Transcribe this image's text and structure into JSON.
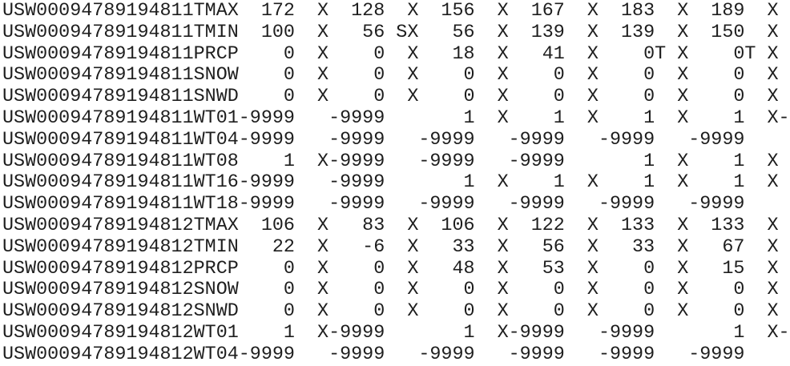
{
  "file": {
    "lines": [
      "USW00094789194811TMAX  172  X  128  X  156  X  167  X  183  X  189  X",
      "USW00094789194811TMIN  100  X   56 SX   56  X  139  X  139  X  150  X",
      "USW00094789194811PRCP    0  X    0  X   18  X   41  X    0T X    0T X",
      "USW00094789194811SNOW    0  X    0  X    0  X    0  X    0  X    0  X",
      "USW00094789194811SNWD    0  X    0  X    0  X    0  X    0  X    0  X",
      "USW00094789194811WT01-9999   -9999       1  X    1  X    1  X    1  X-",
      "USW00094789194811WT04-9999   -9999   -9999   -9999   -9999   -9999",
      "USW00094789194811WT08    1  X-9999   -9999   -9999       1  X    1  X",
      "USW00094789194811WT16-9999   -9999       1  X    1  X    1  X    1  X",
      "USW00094789194811WT18-9999   -9999   -9999   -9999   -9999   -9999",
      "USW00094789194812TMAX  106  X   83  X  106  X  122  X  133  X  133  X",
      "USW00094789194812TMIN   22  X   -6  X   33  X   56  X   33  X   67  X",
      "USW00094789194812PRCP    0  X    0  X   48  X   53  X    0  X   15  X",
      "USW00094789194812SNOW    0  X    0  X    0  X    0  X    0  X    0  X",
      "USW00094789194812SNWD    0  X    0  X    0  X    0  X    0  X    0  X",
      "USW00094789194812WT01    1  X-9999       1  X-9999   -9999       1  X-",
      "USW00094789194812WT04-9999   -9999   -9999   -9999   -9999   -9999"
    ]
  }
}
